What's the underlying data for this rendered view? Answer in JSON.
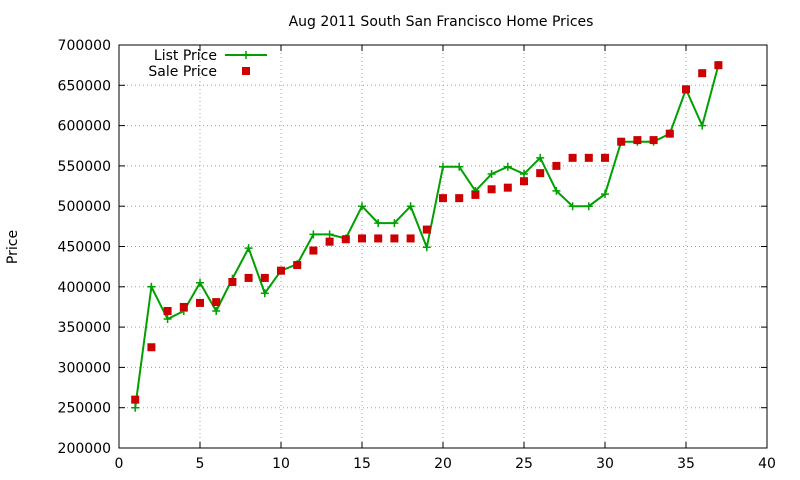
{
  "chart_data": {
    "type": "line",
    "title": "Aug 2011 South San Francisco Home Prices",
    "xlabel": "",
    "ylabel": "Price",
    "xlim": [
      0,
      40
    ],
    "ylim": [
      200000,
      700000
    ],
    "x_ticks": [
      0,
      5,
      10,
      15,
      20,
      25,
      30,
      35,
      40
    ],
    "y_ticks": [
      200000,
      250000,
      300000,
      350000,
      400000,
      450000,
      500000,
      550000,
      600000,
      650000,
      700000
    ],
    "x_tick_labels": [
      "0",
      "5",
      "10",
      "15",
      "20",
      "25",
      "30",
      "35",
      "40"
    ],
    "y_tick_labels": [
      "200000",
      "250000",
      "300000",
      "350000",
      "400000",
      "450000",
      "500000",
      "550000",
      "600000",
      "650000",
      "700000"
    ],
    "grid": true,
    "legend_position": "top-left",
    "series": [
      {
        "name": "List Price",
        "style": "lines+crosses",
        "color": "#00a000",
        "x": [
          1,
          2,
          3,
          4,
          5,
          6,
          7,
          8,
          9,
          10,
          11,
          12,
          13,
          14,
          15,
          16,
          17,
          18,
          19,
          20,
          21,
          22,
          23,
          24,
          25,
          26,
          27,
          28,
          29,
          30,
          31,
          32,
          33,
          34,
          35,
          36,
          37
        ],
        "y": [
          250000,
          400000,
          360000,
          370000,
          405000,
          370000,
          410000,
          448000,
          392000,
          420000,
          428000,
          465000,
          465000,
          460000,
          500000,
          479000,
          479000,
          500000,
          449000,
          549000,
          549000,
          519000,
          540000,
          549000,
          540000,
          560000,
          519000,
          500000,
          500000,
          515000,
          580000,
          580000,
          580000,
          590000,
          645000,
          600000,
          675000
        ]
      },
      {
        "name": "Sale Price",
        "style": "squares",
        "color": "#cc0000",
        "x": [
          1,
          2,
          3,
          4,
          5,
          6,
          7,
          8,
          9,
          10,
          11,
          12,
          13,
          14,
          15,
          16,
          17,
          18,
          19,
          20,
          21,
          22,
          23,
          24,
          25,
          26,
          27,
          28,
          29,
          30,
          31,
          32,
          33,
          34,
          35,
          36,
          37
        ],
        "y": [
          260000,
          325000,
          370000,
          375000,
          380000,
          381000,
          406000,
          411000,
          411000,
          420000,
          427000,
          445000,
          456000,
          459000,
          460000,
          460000,
          460000,
          460000,
          471000,
          510000,
          510000,
          514000,
          521000,
          523000,
          531000,
          541000,
          550000,
          560000,
          560000,
          560000,
          580000,
          582000,
          582000,
          590000,
          645000,
          665000,
          675000
        ]
      }
    ]
  }
}
